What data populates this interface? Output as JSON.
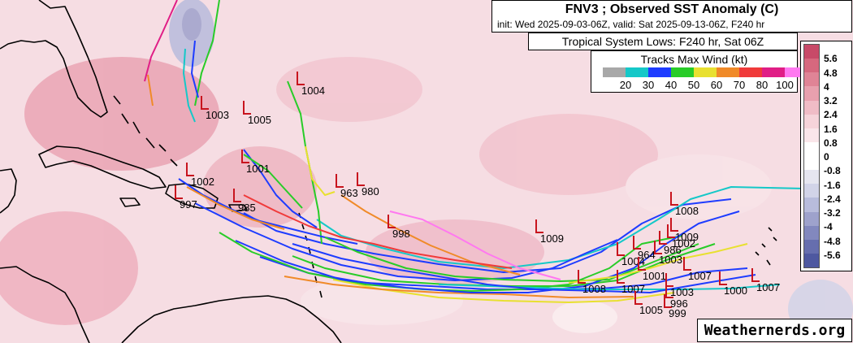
{
  "header": {
    "title": "FNV3 ; Observed SST Anomaly (C)",
    "subtitle": "init: Wed 2025-09-03-06Z, valid: Sat 2025-09-13-06Z, F240 hr"
  },
  "system_box": {
    "label": "Tropical System Lows: F240 hr, Sat 06Z"
  },
  "wind_legend": {
    "title": "Tracks Max Wind (kt)",
    "colors": [
      "#a8a8a8",
      "#15c8c8",
      "#1e3cff",
      "#28cc28",
      "#e8e030",
      "#f08a28",
      "#f03a3a",
      "#e01e86",
      "#ff78f0"
    ],
    "labels": [
      "20",
      "30",
      "40",
      "50",
      "60",
      "70",
      "80",
      "100"
    ]
  },
  "sst_legend": {
    "colors": [
      "#c84a68",
      "#d6687e",
      "#e08496",
      "#e8a0ae",
      "#f0bcc6",
      "#f6d4da",
      "#fae6ea",
      "#ffffff",
      "#ffffff",
      "#e6e6f0",
      "#d2d4e8",
      "#b8bcdc",
      "#9ea2cc",
      "#8288be",
      "#666eae",
      "#4e58a0"
    ],
    "labels": [
      "5.6",
      "4.8",
      "4",
      "3.2",
      "2.4",
      "1.6",
      "0.8",
      "0",
      "-0.8",
      "-1.6",
      "-2.4",
      "-3.2",
      "-4",
      "-4.8",
      "-5.6"
    ]
  },
  "low_markers": [
    {
      "label": "1003"
    },
    {
      "label": "1005"
    },
    {
      "label": "1004"
    },
    {
      "label": "1001"
    },
    {
      "label": "1002"
    },
    {
      "label": "997"
    },
    {
      "label": "985"
    },
    {
      "label": "963"
    },
    {
      "label": "980"
    },
    {
      "label": "998"
    },
    {
      "label": "1009"
    },
    {
      "label": "1008"
    },
    {
      "label": "1009"
    },
    {
      "label": "1002"
    },
    {
      "label": "986"
    },
    {
      "label": "964"
    },
    {
      "label": "1003"
    },
    {
      "label": "1004"
    },
    {
      "label": "1001"
    },
    {
      "label": "1007"
    },
    {
      "label": "1007"
    },
    {
      "label": "1003"
    },
    {
      "label": "1000"
    },
    {
      "label": "1007"
    },
    {
      "label": "1008"
    },
    {
      "label": "996"
    },
    {
      "label": "1005"
    },
    {
      "label": "999"
    }
  ],
  "credit": "Weathernerds.org"
}
